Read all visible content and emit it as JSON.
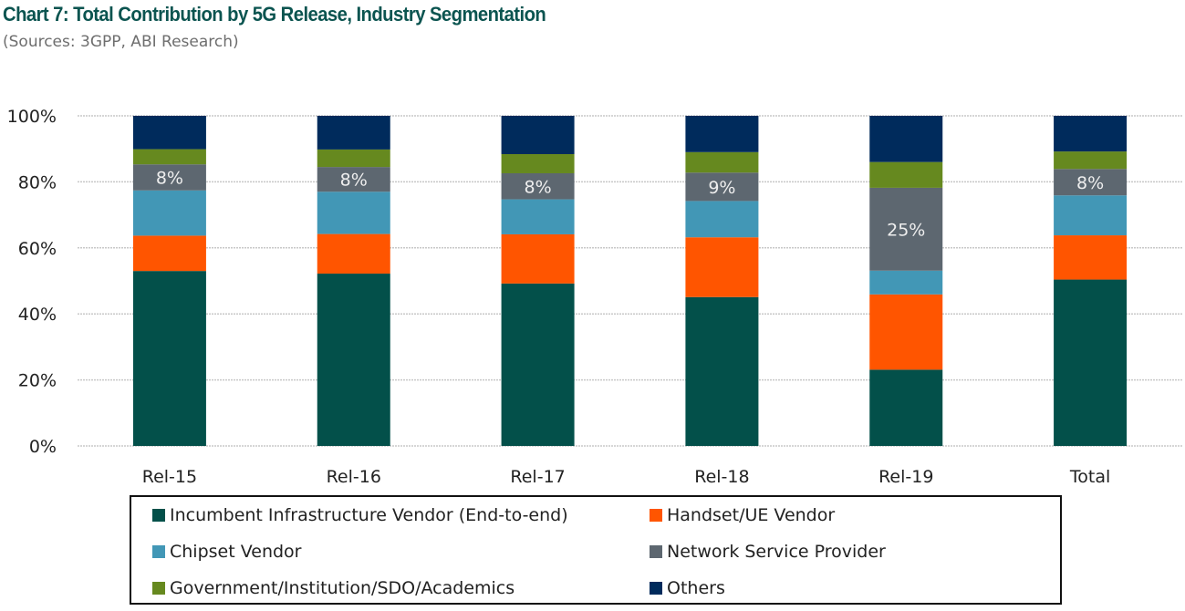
{
  "header": {
    "title": "Chart 7: Total Contribution by 5G Release, Industry Segmentation",
    "subtitle": "(Sources: 3GPP, ABI Research)"
  },
  "chart_data": {
    "type": "bar",
    "stacked": true,
    "normalized": true,
    "title": "Chart 7: Total Contribution by 5G Release, Industry Segmentation",
    "subtitle": "(Sources: 3GPP, ABI Research)",
    "xlabel": "",
    "ylabel": "",
    "ylim": [
      0,
      100
    ],
    "yticks": [
      0,
      20,
      40,
      60,
      80,
      100
    ],
    "ytick_labels": [
      "0%",
      "20%",
      "40%",
      "60%",
      "80%",
      "100%"
    ],
    "grid": "horizontal",
    "legend_position": "bottom",
    "categories": [
      "Rel-15",
      "Rel-16",
      "Rel-17",
      "Rel-18",
      "Rel-19",
      "Total"
    ],
    "series": [
      {
        "name": "Incumbent Infrastructure Vendor (End-to-end)",
        "color": "#03504a",
        "values": [
          53.0,
          52.2,
          49.2,
          45.1,
          23.1,
          50.4
        ]
      },
      {
        "name": "Handset/UE Vendor",
        "color": "#ff5500",
        "values": [
          10.7,
          12.0,
          14.9,
          18.1,
          22.8,
          13.4
        ]
      },
      {
        "name": "Chipset Vendor",
        "color": "#4297b6",
        "values": [
          13.7,
          12.8,
          10.6,
          11.0,
          7.2,
          12.1
        ]
      },
      {
        "name": "Network Service Provider",
        "color": "#5d6770",
        "values": [
          7.9,
          7.5,
          7.9,
          8.6,
          25.1,
          8.0
        ],
        "data_labels": [
          "8%",
          "8%",
          "8%",
          "9%",
          "25%",
          "8%"
        ]
      },
      {
        "name": "Government/Institution/SDO/Academics",
        "color": "#66891f",
        "values": [
          4.6,
          5.3,
          5.8,
          6.2,
          7.8,
          5.3
        ]
      },
      {
        "name": "Others",
        "color": "#002b5c",
        "values": [
          10.1,
          10.2,
          11.6,
          11.0,
          14.0,
          10.8
        ]
      }
    ]
  },
  "legend": {
    "items": [
      {
        "label": "Incumbent Infrastructure Vendor (End-to-end)",
        "color": "#03504a"
      },
      {
        "label": "Handset/UE Vendor",
        "color": "#ff5500"
      },
      {
        "label": "Chipset Vendor",
        "color": "#4297b6"
      },
      {
        "label": "Network Service Provider",
        "color": "#5d6770"
      },
      {
        "label": "Government/Institution/SDO/Academics",
        "color": "#66891f"
      },
      {
        "label": "Others",
        "color": "#002b5c"
      }
    ]
  }
}
